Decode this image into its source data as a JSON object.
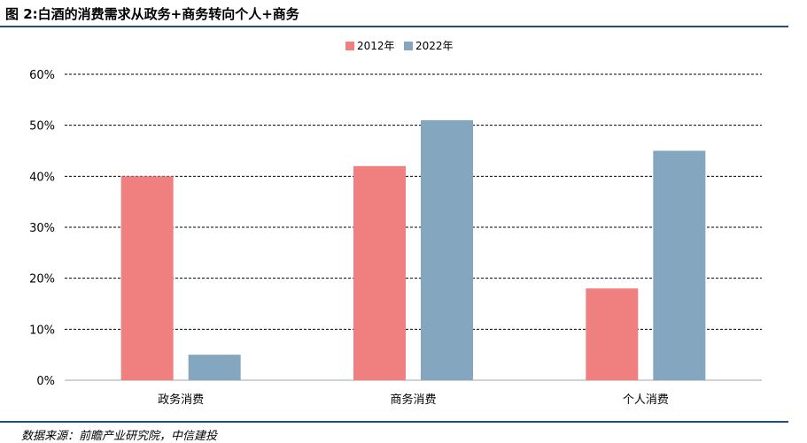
{
  "header": {
    "title": "图 2:白酒的消费需求从政务+商务转向个人+商务"
  },
  "footer": {
    "source": "数据来源：前瞻产业研究院，中信建投"
  },
  "colors": {
    "series_2012": "#f08080",
    "series_2022": "#84a6be",
    "rule": "#1f4e79"
  },
  "chart_data": {
    "type": "bar",
    "categories": [
      "政务消费",
      "商务消费",
      "个人消费"
    ],
    "series": [
      {
        "name": "2012年",
        "values": [
          40,
          42,
          18
        ],
        "color": "#f08080"
      },
      {
        "name": "2022年",
        "values": [
          5,
          51,
          45
        ],
        "color": "#84a6be"
      }
    ],
    "y_ticks": [
      "0%",
      "10%",
      "20%",
      "30%",
      "40%",
      "50%",
      "60%"
    ],
    "ylim": [
      0,
      60
    ],
    "grid": true,
    "legend_position": "top-center"
  }
}
